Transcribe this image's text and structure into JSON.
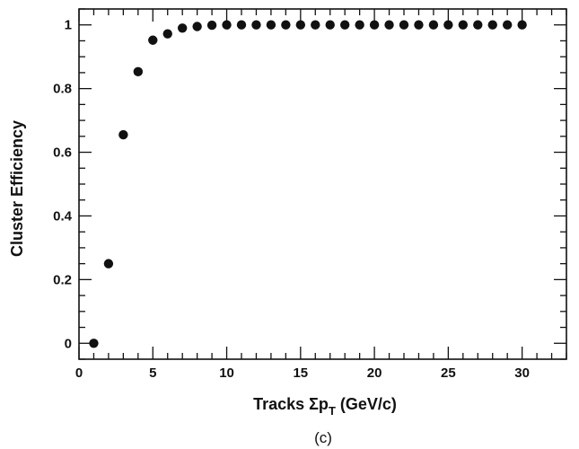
{
  "chart_data": {
    "type": "scatter",
    "title": "",
    "xlabel": "Tracks Σp",
    "xlabel_sub": "T",
    "xlabel_unit": " (GeV/c)",
    "ylabel": "Cluster Efficiency",
    "panel_label": "(c)",
    "xlim": [
      0,
      33
    ],
    "ylim": [
      -0.05,
      1.05
    ],
    "xticks": [
      0,
      5,
      10,
      15,
      20,
      25,
      30
    ],
    "yticks": [
      0,
      0.2,
      0.4,
      0.6,
      0.8,
      1
    ],
    "ytick_labels": [
      "0",
      "0.2",
      "0.4",
      "0.6",
      "0.8",
      "1"
    ],
    "grid": false,
    "marker_color": "#111111",
    "series": [
      {
        "x": [
          1,
          2,
          3,
          4,
          5,
          6,
          7,
          8,
          9,
          10,
          11,
          12,
          13,
          14,
          15,
          16,
          17,
          18,
          19,
          20,
          21,
          22,
          23,
          24,
          25,
          26,
          27,
          28,
          29,
          30
        ],
        "y": [
          0.0,
          0.25,
          0.655,
          0.853,
          0.952,
          0.972,
          0.99,
          0.995,
          0.999,
          1,
          1,
          1,
          1,
          1,
          1,
          1,
          1,
          1,
          1,
          1,
          1,
          1,
          1,
          1,
          1,
          1,
          1,
          1,
          1,
          1
        ]
      }
    ]
  }
}
